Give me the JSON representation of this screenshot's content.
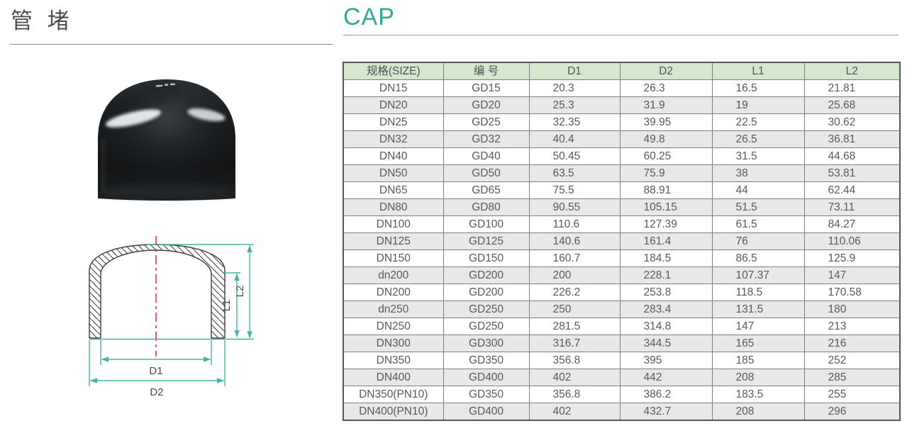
{
  "header": {
    "title_cn": "管 堵",
    "title_en": "CAP"
  },
  "diagram": {
    "labels": {
      "d1": "D1",
      "d2": "D2",
      "l1": "L1",
      "l2": "L2"
    }
  },
  "table": {
    "headers": [
      "规格(SIZE)",
      "编 号",
      "D1",
      "D2",
      "L1",
      "L2"
    ],
    "rows": [
      [
        "DN15",
        "GD15",
        "20.3",
        "26.3",
        "16.5",
        "21.81"
      ],
      [
        "DN20",
        "GD20",
        "25.3",
        "31.9",
        "19",
        "25.68"
      ],
      [
        "DN25",
        "GD25",
        "32.35",
        "39.95",
        "22.5",
        "30.62"
      ],
      [
        "DN32",
        "GD32",
        "40.4",
        "49.8",
        "26.5",
        "36.81"
      ],
      [
        "DN40",
        "GD40",
        "50.45",
        "60.25",
        "31.5",
        "44.68"
      ],
      [
        "DN50",
        "GD50",
        "63.5",
        "75.9",
        "38",
        "53.81"
      ],
      [
        "DN65",
        "GD65",
        "75.5",
        "88.91",
        "44",
        "62.44"
      ],
      [
        "DN80",
        "GD80",
        "90.55",
        "105.15",
        "51.5",
        "73.11"
      ],
      [
        "DN100",
        "GD100",
        "110.6",
        "127.39",
        "61.5",
        "84.27"
      ],
      [
        "DN125",
        "GD125",
        "140.6",
        "161.4",
        "76",
        "110.06"
      ],
      [
        "DN150",
        "GD150",
        "160.7",
        "184.5",
        "86.5",
        "125.9"
      ],
      [
        "dn200",
        "GD200",
        "200",
        "228.1",
        "107.37",
        "147"
      ],
      [
        "DN200",
        "GD200",
        "226.2",
        "253.8",
        "118.5",
        "170.58"
      ],
      [
        "dn250",
        "GD250",
        "250",
        "283.4",
        "131.5",
        "180"
      ],
      [
        "DN250",
        "GD250",
        "281.5",
        "314.8",
        "147",
        "213"
      ],
      [
        "DN300",
        "GD300",
        "316.7",
        "344.5",
        "165",
        "216"
      ],
      [
        "DN350",
        "GD350",
        "356.8",
        "395",
        "185",
        "252"
      ],
      [
        "DN400",
        "GD400",
        "402",
        "442",
        "208",
        "285"
      ],
      [
        "DN350(PN10)",
        "GD350",
        "356.8",
        "386.2",
        "183.5",
        "255"
      ],
      [
        "DN400(PN10)",
        "GD400",
        "402",
        "432.7",
        "208",
        "296"
      ]
    ]
  },
  "colors": {
    "accent_teal": "#35a98e",
    "dimension_line_teal": "#45b5a0",
    "table_header_bg": "#d6e7d0",
    "table_alt_row_bg": "#e8e8e8",
    "body_text_gray": "#58595b",
    "centerline_pink": "#ed2a7b"
  }
}
